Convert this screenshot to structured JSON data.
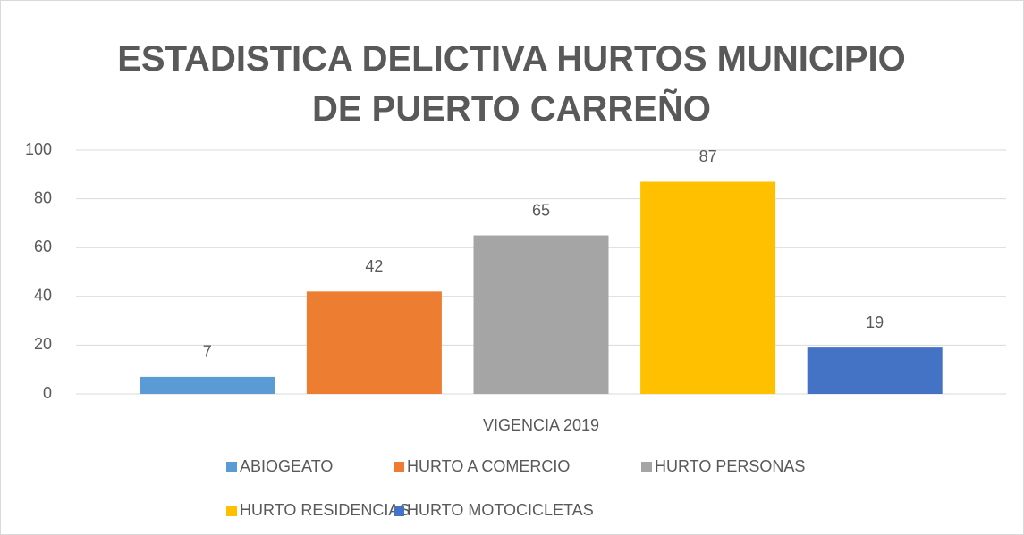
{
  "chart_data": {
    "type": "bar",
    "title": "ESTADISTICA DELICTIVA HURTOS MUNICIPIO DE PUERTO CARREÑO",
    "categories": [
      "VIGENCIA 2019"
    ],
    "series": [
      {
        "name": "ABIOGEATO",
        "color": "#5b9bd5",
        "values": [
          7
        ]
      },
      {
        "name": "HURTO A COMERCIO",
        "color": "#ed7d31",
        "values": [
          42
        ]
      },
      {
        "name": "HURTO PERSONAS",
        "color": "#a5a5a5",
        "values": [
          65
        ]
      },
      {
        "name": "HURTO RESIDENCIAS",
        "color": "#ffc000",
        "values": [
          87
        ]
      },
      {
        "name": "HURTO MOTOCICLETAS",
        "color": "#4472c4",
        "values": [
          19
        ]
      }
    ],
    "ylim": [
      0,
      100
    ],
    "yticks": [
      0,
      20,
      40,
      60,
      80,
      100
    ],
    "grid": true,
    "legend": "bottom"
  }
}
